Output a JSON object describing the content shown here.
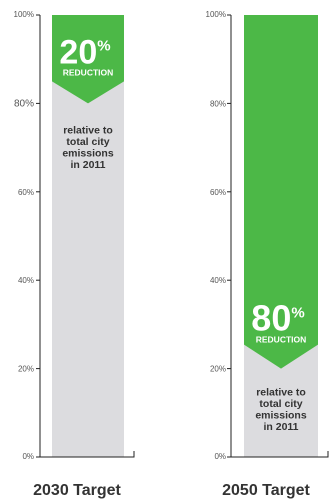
{
  "chart_data": [
    {
      "type": "bar",
      "category": "2030 Target",
      "reduction_percent": 20,
      "percent_sign": "%",
      "reduction_label": "REDUCTION",
      "remaining_percent": 80,
      "note_lines": [
        "relative to",
        "total city",
        "emissions",
        "in 2011"
      ],
      "y_ticks": [
        "0%",
        "20%",
        "40%",
        "60%",
        "80%",
        "100%"
      ],
      "ylim": [
        0,
        100
      ]
    },
    {
      "type": "bar",
      "category": "2050 Target",
      "reduction_percent": 80,
      "percent_sign": "%",
      "reduction_label": "REDUCTION",
      "remaining_percent": 20,
      "note_lines": [
        "relative to",
        "total city",
        "emissions",
        "in 2011"
      ],
      "y_ticks": [
        "0%",
        "20%",
        "40%",
        "60%",
        "80%",
        "100%"
      ],
      "ylim": [
        0,
        100
      ]
    }
  ],
  "colors": {
    "reduction": "#4cb847",
    "remaining": "#dcdcdf",
    "axis": "#222222"
  }
}
